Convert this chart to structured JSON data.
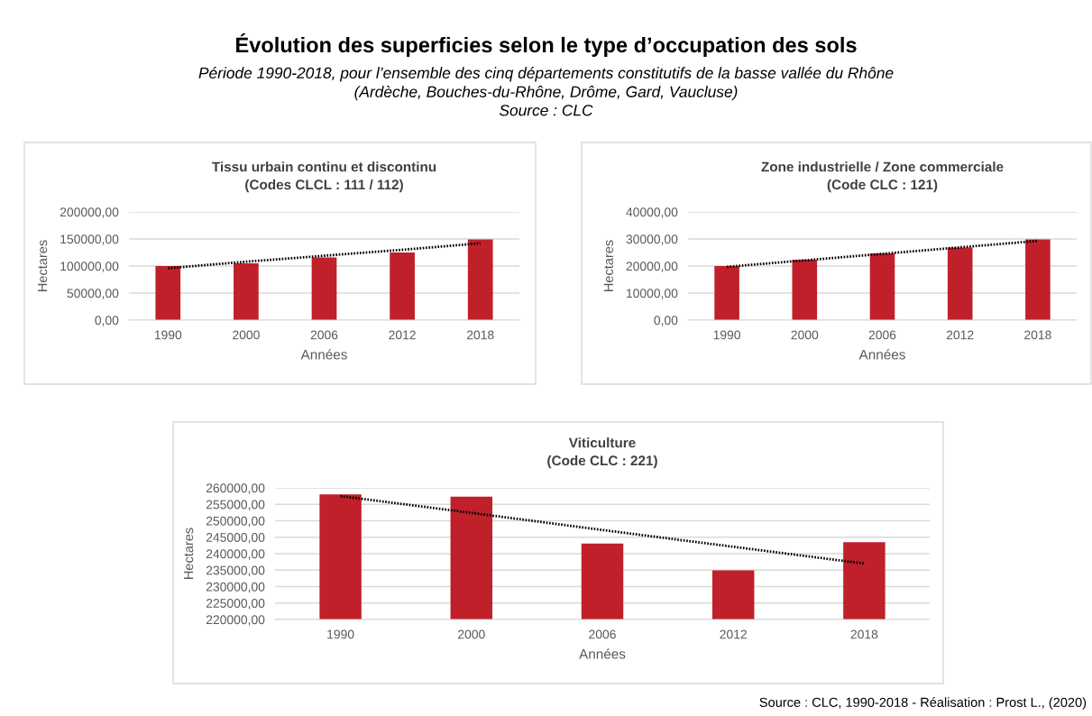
{
  "chart_data": [
    {
      "type": "other",
      "title": "Évolution des superficies selon le type d’occupation des sols",
      "subtitle": "Période 1990-2018, pour l’ensemble des cinq départements constitutifs de la basse vallée du Rhône\n(Ardèche, Bouches-du-Rhône, Drôme, Gard, Vaucluse)\nSource : CLC",
      "annotations": [
        "Source : CLC, 1990-2018 - Réalisation : Prost L., (2020)"
      ]
    },
    {
      "type": "bar",
      "title": "Tissu urbain continu et discontinu\n(Codes CLCL : 111 / 112)",
      "xlabel": "Années",
      "ylabel": "Hectares",
      "categories": [
        "1990",
        "2000",
        "2006",
        "2012",
        "2018"
      ],
      "series": [
        {
          "type": "bar",
          "color": "#c0202a",
          "values": [
            100000,
            105000,
            116000,
            125000,
            149000
          ]
        },
        {
          "type": "line",
          "color": "#000000",
          "line_style": "dotted",
          "values": [
            96000,
            108000,
            119000,
            130000,
            142000
          ]
        }
      ],
      "ylim": [
        0,
        200000
      ],
      "yticks": [
        {
          "value": 0,
          "label": "0,00"
        },
        {
          "value": 50000,
          "label": "50000,00"
        },
        {
          "value": 100000,
          "label": "100000,00"
        },
        {
          "value": 150000,
          "label": "150000,00"
        },
        {
          "value": 200000,
          "label": "200000,00"
        }
      ],
      "grid": "y",
      "legend": false
    },
    {
      "type": "bar",
      "title": "Zone industrielle / Zone commerciale\n(Code CLC : 121)",
      "xlabel": "Années",
      "ylabel": "Hectares",
      "categories": [
        "1990",
        "2000",
        "2006",
        "2012",
        "2018"
      ],
      "series": [
        {
          "type": "bar",
          "color": "#c0202a",
          "values": [
            20000,
            22300,
            24700,
            26800,
            29800
          ]
        },
        {
          "type": "line",
          "color": "#000000",
          "line_style": "dotted",
          "values": [
            19700,
            22100,
            24500,
            26900,
            29300
          ]
        }
      ],
      "ylim": [
        0,
        40000
      ],
      "yticks": [
        {
          "value": 0,
          "label": "0,00"
        },
        {
          "value": 10000,
          "label": "10000,00"
        },
        {
          "value": 20000,
          "label": "20000,00"
        },
        {
          "value": 30000,
          "label": "30000,00"
        },
        {
          "value": 40000,
          "label": "40000,00"
        }
      ],
      "grid": "y",
      "legend": false
    },
    {
      "type": "bar",
      "title": "Viticulture\n(Code CLC : 221)",
      "xlabel": "Années",
      "ylabel": "Hectares",
      "categories": [
        "1990",
        "2000",
        "2006",
        "2012",
        "2018"
      ],
      "series": [
        {
          "type": "bar",
          "color": "#c0202a",
          "values": [
            258000,
            257300,
            243100,
            234900,
            243500
          ]
        },
        {
          "type": "line",
          "color": "#000000",
          "line_style": "dotted",
          "values": [
            257500,
            252400,
            247200,
            242100,
            237000
          ]
        }
      ],
      "ylim": [
        220000,
        260000
      ],
      "yticks": [
        {
          "value": 220000,
          "label": "220000,00"
        },
        {
          "value": 225000,
          "label": "225000,00"
        },
        {
          "value": 230000,
          "label": "230000,00"
        },
        {
          "value": 235000,
          "label": "235000,00"
        },
        {
          "value": 240000,
          "label": "240000,00"
        },
        {
          "value": 245000,
          "label": "245000,00"
        },
        {
          "value": 250000,
          "label": "250000,00"
        },
        {
          "value": 255000,
          "label": "255000,00"
        },
        {
          "value": 260000,
          "label": "260000,00"
        }
      ],
      "grid": "y",
      "legend": false
    }
  ]
}
